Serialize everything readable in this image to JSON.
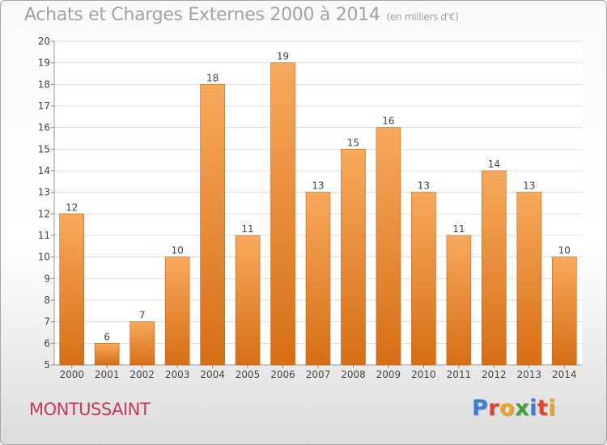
{
  "title": "Achats et Charges Externes 2000 à 2014",
  "unit": "(en milliers d'€)",
  "commune": "MONTUSSAINT",
  "brand": {
    "letters": [
      "P",
      "r",
      "o",
      "x",
      "i",
      "t",
      "i"
    ],
    "colors": [
      "#3b7dd8",
      "#e8402a",
      "#f2a21e",
      "#3aa53a",
      "#3b7dd8",
      "#e8402a",
      "#f2a21e"
    ]
  },
  "colors": {
    "bar_light": "#f8a95c",
    "bar_dark": "#d66f16",
    "grid": "#dcdcdc",
    "text": "#444444"
  },
  "chart_data": {
    "type": "bar",
    "title": "Achats et Charges Externes 2000 à 2014",
    "xlabel": "",
    "ylabel": "",
    "ylim": [
      5,
      20
    ],
    "yticks": [
      5,
      6,
      7,
      8,
      9,
      10,
      11,
      12,
      13,
      14,
      15,
      16,
      17,
      18,
      19,
      20
    ],
    "grid": true,
    "categories": [
      "2000",
      "2001",
      "2002",
      "2003",
      "2004",
      "2005",
      "2006",
      "2007",
      "2008",
      "2009",
      "2010",
      "2011",
      "2012",
      "2013",
      "2014"
    ],
    "values": [
      12,
      6,
      7,
      10,
      18,
      11,
      19,
      13,
      15,
      16,
      13,
      11,
      14,
      13,
      10
    ]
  }
}
